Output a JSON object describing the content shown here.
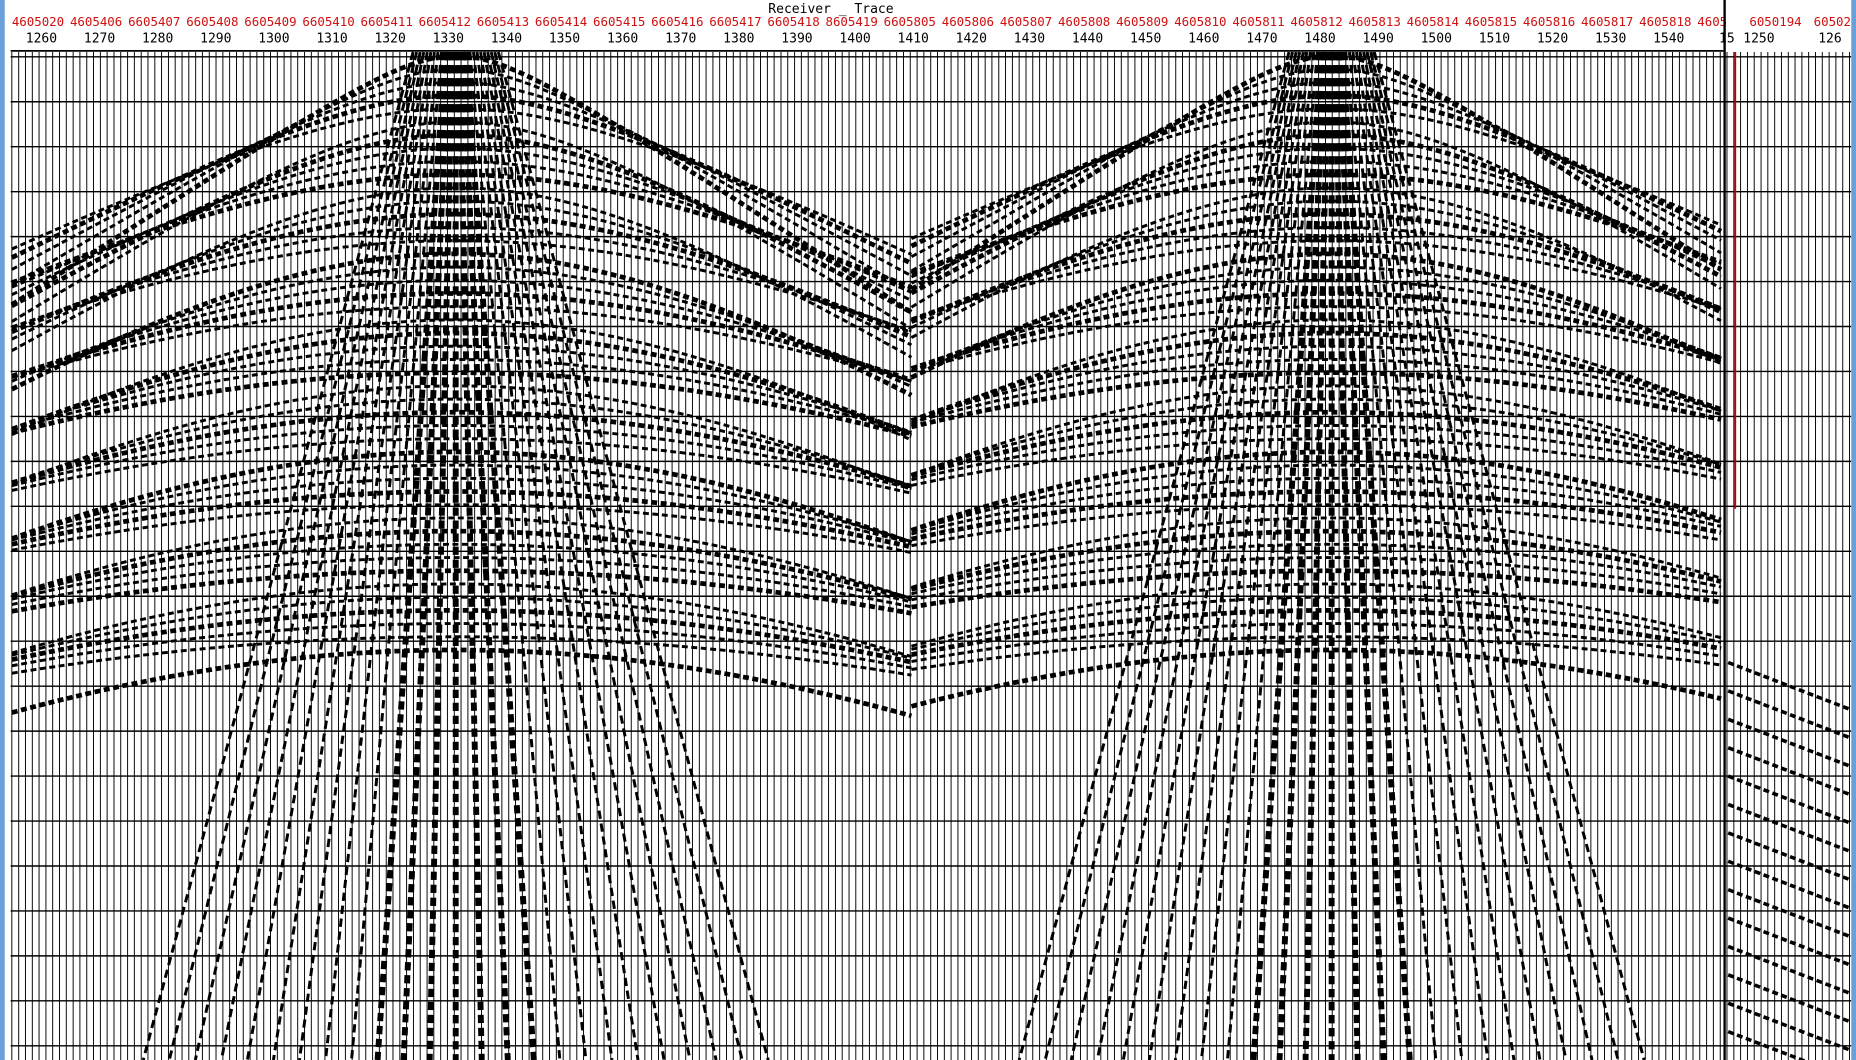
{
  "title": "Receiver _ Trace",
  "receiver_labels": [
    "4605020",
    "4605406",
    "6605407",
    "6605408",
    "6605409",
    "6605410",
    "6605411",
    "6605412",
    "6605413",
    "6605414",
    "6605415",
    "6605416",
    "6605417",
    "6605418",
    "8605419",
    "6605805",
    "4605806",
    "4605807",
    "4605808",
    "4605809",
    "4605810",
    "4605811",
    "4605812",
    "4605813",
    "4605814",
    "4605815",
    "4605816",
    "4605817",
    "4605818",
    "4605"
  ],
  "trace_labels": [
    "1260",
    "1270",
    "1280",
    "1290",
    "1300",
    "1310",
    "1320",
    "1330",
    "1340",
    "1350",
    "1360",
    "1370",
    "1380",
    "1390",
    "1400",
    "1410",
    "1420",
    "1430",
    "1440",
    "1450",
    "1460",
    "1470",
    "1480",
    "1490",
    "1500",
    "1510",
    "1520",
    "1530",
    "1540",
    "15"
  ],
  "right_panel": {
    "receiver_labels": [
      "6050194",
      "60502"
    ],
    "trace_labels": [
      "1250",
      "126"
    ]
  }
}
